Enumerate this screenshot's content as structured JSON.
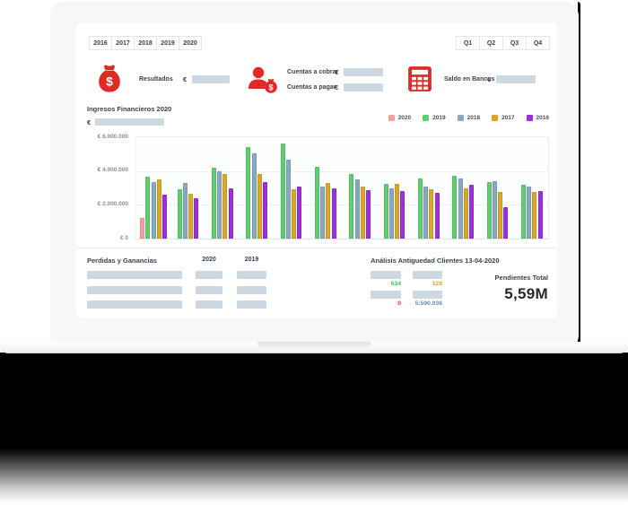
{
  "accent_red": "#E02A26",
  "placeholder_color": "#CCD9E2",
  "filters": {
    "years": [
      "2016",
      "2017",
      "2018",
      "2019",
      "2020"
    ],
    "quarters": [
      "Q1",
      "Q2",
      "Q3",
      "Q4"
    ]
  },
  "kpis": {
    "resultados": {
      "label": "Resultados",
      "currency": "€"
    },
    "cobrar": {
      "label": "Cuentas a cobrar",
      "currency": "€"
    },
    "pagar": {
      "label": "Cuentas a pagar",
      "currency": "€"
    },
    "bancos": {
      "label": "Saldo en Bancos",
      "currency": "€"
    }
  },
  "chart_data": {
    "type": "bar",
    "title": "Ingresos Financieros 2020",
    "currency_prefix": "€",
    "xlabel": "",
    "ylabel": "",
    "ylim": [
      0,
      6000000
    ],
    "y_ticks": [
      "€ 6.000.000",
      "€ 4.000.000",
      "€ 2.000.000",
      "€ 0"
    ],
    "grid": true,
    "legend_position": "top-right",
    "categories": [
      "",
      "",
      "",
      "",
      "",
      "",
      "",
      "",
      "",
      "",
      "",
      ""
    ],
    "series": [
      {
        "name": "2020",
        "color": "#F2A0A4",
        "values": [
          1200000,
          null,
          null,
          null,
          null,
          null,
          null,
          null,
          null,
          null,
          null,
          null
        ]
      },
      {
        "name": "2019",
        "color": "#5FCE6E",
        "values": [
          3650000,
          2900000,
          4200000,
          5400000,
          5650000,
          4250000,
          3850000,
          3250000,
          3550000,
          3700000,
          3350000,
          3200000
        ]
      },
      {
        "name": "2018",
        "color": "#89A8C2",
        "values": [
          3350000,
          3300000,
          4000000,
          5050000,
          4650000,
          3100000,
          3500000,
          3000000,
          3100000,
          3550000,
          3400000,
          3100000
        ]
      },
      {
        "name": "2017",
        "color": "#D9A826",
        "values": [
          3500000,
          2650000,
          3850000,
          3850000,
          2900000,
          3300000,
          3100000,
          3250000,
          2900000,
          3000000,
          2750000,
          2750000
        ]
      },
      {
        "name": "2016",
        "color": "#9C30DF",
        "values": [
          2600000,
          2400000,
          3000000,
          3350000,
          3100000,
          3000000,
          2850000,
          2800000,
          2700000,
          3200000,
          1850000,
          2800000
        ]
      }
    ]
  },
  "pnl": {
    "title": "Perdidas y Ganancias",
    "columns": [
      "2020",
      "2019"
    ]
  },
  "aging": {
    "title": "Análisis Antiguedad Clientes 13-04-2020",
    "values": [
      {
        "text": "534",
        "color": "#3DBE5B"
      },
      {
        "text": "128",
        "color": "#D9A826"
      },
      {
        "text": "0",
        "color": "#E02A26"
      },
      {
        "text": "5.590.036",
        "color": "#5B8DB8"
      }
    ],
    "pendientes_label": "Pendientes Total",
    "pendientes_total": "5,59M"
  }
}
